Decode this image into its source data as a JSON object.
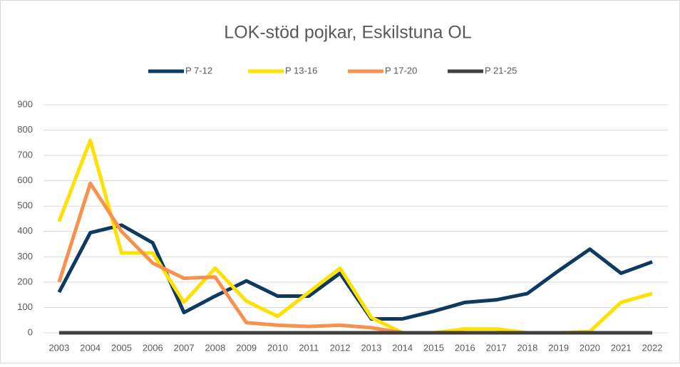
{
  "chart_data": {
    "type": "line",
    "title": "LOK-stöd pojkar, Eskilstuna OL",
    "categories": [
      "2003",
      "2004",
      "2005",
      "2006",
      "2007",
      "2008",
      "2009",
      "2010",
      "2011",
      "2012",
      "2013",
      "2014",
      "2015",
      "2016",
      "2017",
      "2018",
      "2019",
      "2020",
      "2021",
      "2022"
    ],
    "series": [
      {
        "name": "P 7-12",
        "color": "#0e3a62",
        "values": [
          160,
          395,
          425,
          355,
          80,
          145,
          205,
          145,
          145,
          235,
          55,
          55,
          85,
          120,
          130,
          155,
          245,
          330,
          235,
          280
        ]
      },
      {
        "name": "P 13-16",
        "color": "#ffe100",
        "values": [
          440,
          760,
          315,
          315,
          120,
          255,
          125,
          65,
          160,
          255,
          60,
          0,
          0,
          15,
          15,
          0,
          0,
          5,
          120,
          155
        ]
      },
      {
        "name": "P 17-20",
        "color": "#f7914d",
        "values": [
          200,
          590,
          400,
          275,
          215,
          220,
          40,
          30,
          25,
          30,
          20,
          0,
          0,
          0,
          0,
          0,
          0,
          0,
          0,
          0
        ]
      },
      {
        "name": "P 21-25",
        "color": "#404040",
        "values": [
          0,
          0,
          0,
          0,
          0,
          0,
          0,
          0,
          0,
          0,
          0,
          0,
          0,
          0,
          0,
          0,
          0,
          0,
          0,
          0
        ]
      }
    ],
    "ylim": [
      0,
      900
    ],
    "yticks": [
      0,
      100,
      200,
      300,
      400,
      500,
      600,
      700,
      800,
      900
    ],
    "grid": true,
    "legend": "top"
  }
}
